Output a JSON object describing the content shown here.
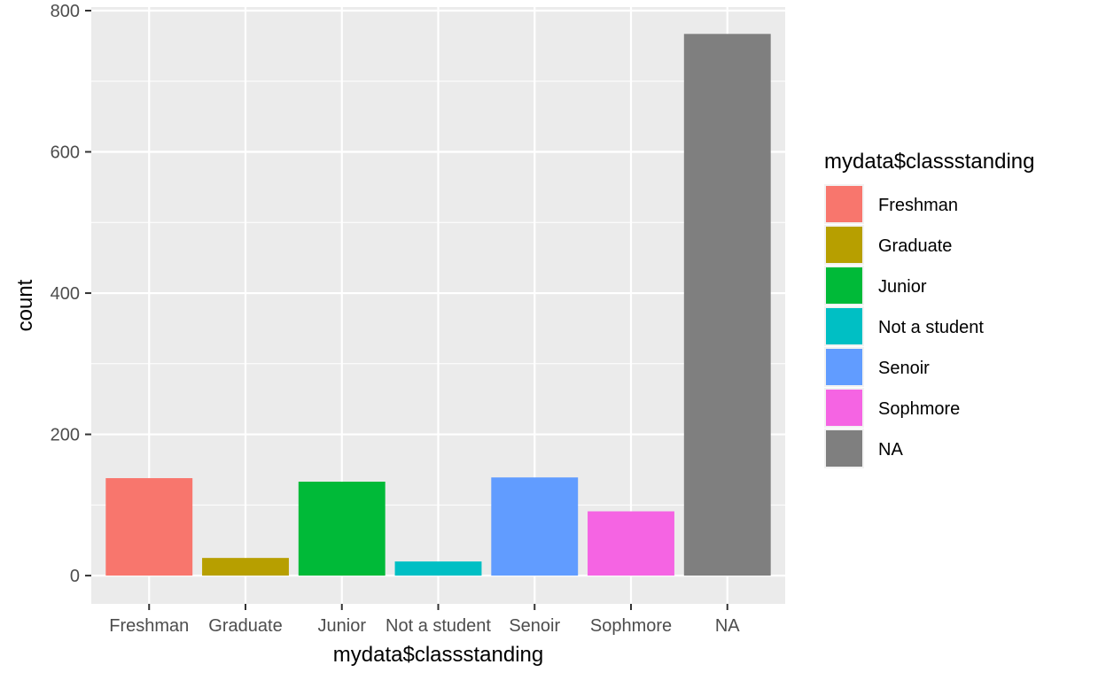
{
  "chart_data": {
    "type": "bar",
    "xlabel": "mydata$classstanding",
    "ylabel": "count",
    "ylim": [
      -40,
      805
    ],
    "yticks": [
      0,
      200,
      400,
      600,
      800
    ],
    "categories": [
      "Freshman",
      "Graduate",
      "Junior",
      "Not a student",
      "Senoir",
      "Sophmore",
      "NA"
    ],
    "values": [
      138,
      25,
      133,
      20,
      139,
      91,
      767
    ],
    "colors": [
      "#F8766D",
      "#B79F00",
      "#00BA38",
      "#00BFC4",
      "#619CFF",
      "#F564E3",
      "#7F7F7F"
    ],
    "grid": true,
    "legend": {
      "title": "mydata$classstanding",
      "position": "right",
      "entries": [
        "Freshman",
        "Graduate",
        "Junior",
        "Not a student",
        "Senoir",
        "Sophmore",
        "NA"
      ]
    }
  }
}
